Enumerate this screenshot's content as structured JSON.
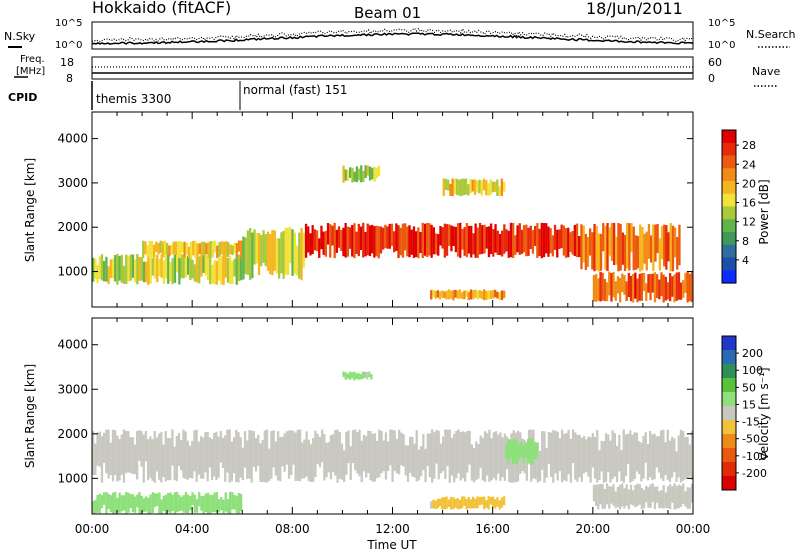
{
  "header": {
    "station": "Hokkaido (fitACF)",
    "beam": "Beam 01",
    "date": "18/Jun/2011"
  },
  "noise_panel": {
    "left_label": "N.Sky",
    "right_label": "N.Search",
    "left_ticks": [
      "10^5",
      "10^0"
    ],
    "right_ticks": [
      "10^5",
      "10^0"
    ]
  },
  "freq_panel": {
    "left_label_1": "Freq.",
    "left_label_2": "[MHz]",
    "right_label": "Nave",
    "left_ticks": [
      "18",
      "8"
    ],
    "right_ticks": [
      "60",
      "0"
    ]
  },
  "cpid_panel": {
    "label": "CPID",
    "modes": [
      {
        "name": "themis 3300",
        "start_hour": 0
      },
      {
        "name": "normal (fast) 151",
        "start_hour": 6
      }
    ]
  },
  "colors": {
    "power_scale": [
      "#0a2cff",
      "#1d4fa8",
      "#2e6fa0",
      "#3f9a5a",
      "#5fb54a",
      "#a8c93c",
      "#f2e23a",
      "#f5b51f",
      "#f28b15",
      "#ec5a0e",
      "#e82a0a",
      "#e00000"
    ],
    "velocity_scale": [
      "#2036c8",
      "#2a6ab0",
      "#2f8f55",
      "#59c23b",
      "#8ee07a",
      "#c8c8c0",
      "#f2c33a",
      "#ee8a1a",
      "#e85a10",
      "#e02a08",
      "#d80000"
    ]
  },
  "chart_data": [
    {
      "type": "heatmap",
      "name": "power",
      "ylabel": "Slant Range [km]",
      "xlabel": "Time UT",
      "xlim": [
        0,
        24
      ],
      "ylim": [
        200,
        4600
      ],
      "y_ticks": [
        "1000",
        "2000",
        "3000",
        "4000"
      ],
      "x_ticks": [
        "00:00",
        "04:00",
        "08:00",
        "12:00",
        "16:00",
        "20:00",
        "00:00"
      ],
      "colorbar_label": "Power [dB]",
      "colorbar_ticks": [
        "28",
        "24",
        "20",
        "16",
        "12",
        "8",
        "4"
      ],
      "colorbar_range": [
        0,
        30
      ],
      "bands": [
        {
          "t0": 0.0,
          "t1": 6.0,
          "r0": 700,
          "r1": 1400,
          "level": 15
        },
        {
          "t0": 2.0,
          "t1": 6.0,
          "r0": 1300,
          "r1": 1700,
          "level": 18
        },
        {
          "t0": 6.0,
          "t1": 8.5,
          "r0": 800,
          "r1": 2000,
          "level": 16
        },
        {
          "t0": 8.5,
          "t1": 19.5,
          "r0": 1300,
          "r1": 2100,
          "level": 27
        },
        {
          "t0": 19.5,
          "t1": 23.5,
          "r0": 1000,
          "r1": 2100,
          "level": 22
        },
        {
          "t0": 20.0,
          "t1": 24.0,
          "r0": 300,
          "r1": 1000,
          "level": 24
        },
        {
          "t0": 10.0,
          "t1": 11.5,
          "r0": 3000,
          "r1": 3400,
          "level": 14
        },
        {
          "t0": 14.0,
          "t1": 16.5,
          "r0": 2700,
          "r1": 3100,
          "level": 17
        },
        {
          "t0": 13.5,
          "t1": 16.5,
          "r0": 350,
          "r1": 600,
          "level": 20
        }
      ]
    },
    {
      "type": "heatmap",
      "name": "velocity",
      "ylabel": "Slant Range [km]",
      "xlabel": "Time UT",
      "xlim": [
        0,
        24
      ],
      "ylim": [
        200,
        4600
      ],
      "y_ticks": [
        "1000",
        "2000",
        "3000",
        "4000"
      ],
      "x_ticks": [
        "00:00",
        "04:00",
        "08:00",
        "12:00",
        "16:00",
        "20:00",
        "00:00"
      ],
      "colorbar_label": "Velocity [m s⁻¹]",
      "colorbar_ticks": [
        "200",
        "100",
        "50",
        "15",
        "-15",
        "-50",
        "-100",
        "-200"
      ],
      "colorbar_range": [
        -250,
        250
      ],
      "bands": [
        {
          "t0": 0.0,
          "t1": 24.0,
          "r0": 900,
          "r1": 2100,
          "level": 0
        },
        {
          "t0": 0.0,
          "t1": 6.0,
          "r0": 200,
          "r1": 700,
          "level": 40
        },
        {
          "t0": 16.5,
          "t1": 17.8,
          "r0": 1300,
          "r1": 1900,
          "level": 45
        },
        {
          "t0": 10.0,
          "t1": 11.2,
          "r0": 3200,
          "r1": 3400,
          "level": 40
        },
        {
          "t0": 13.5,
          "t1": 16.5,
          "r0": 300,
          "r1": 600,
          "level": -40
        },
        {
          "t0": 20.0,
          "t1": 24.0,
          "r0": 300,
          "r1": 900,
          "level": 0
        }
      ]
    }
  ],
  "axis_title": "Time UT"
}
